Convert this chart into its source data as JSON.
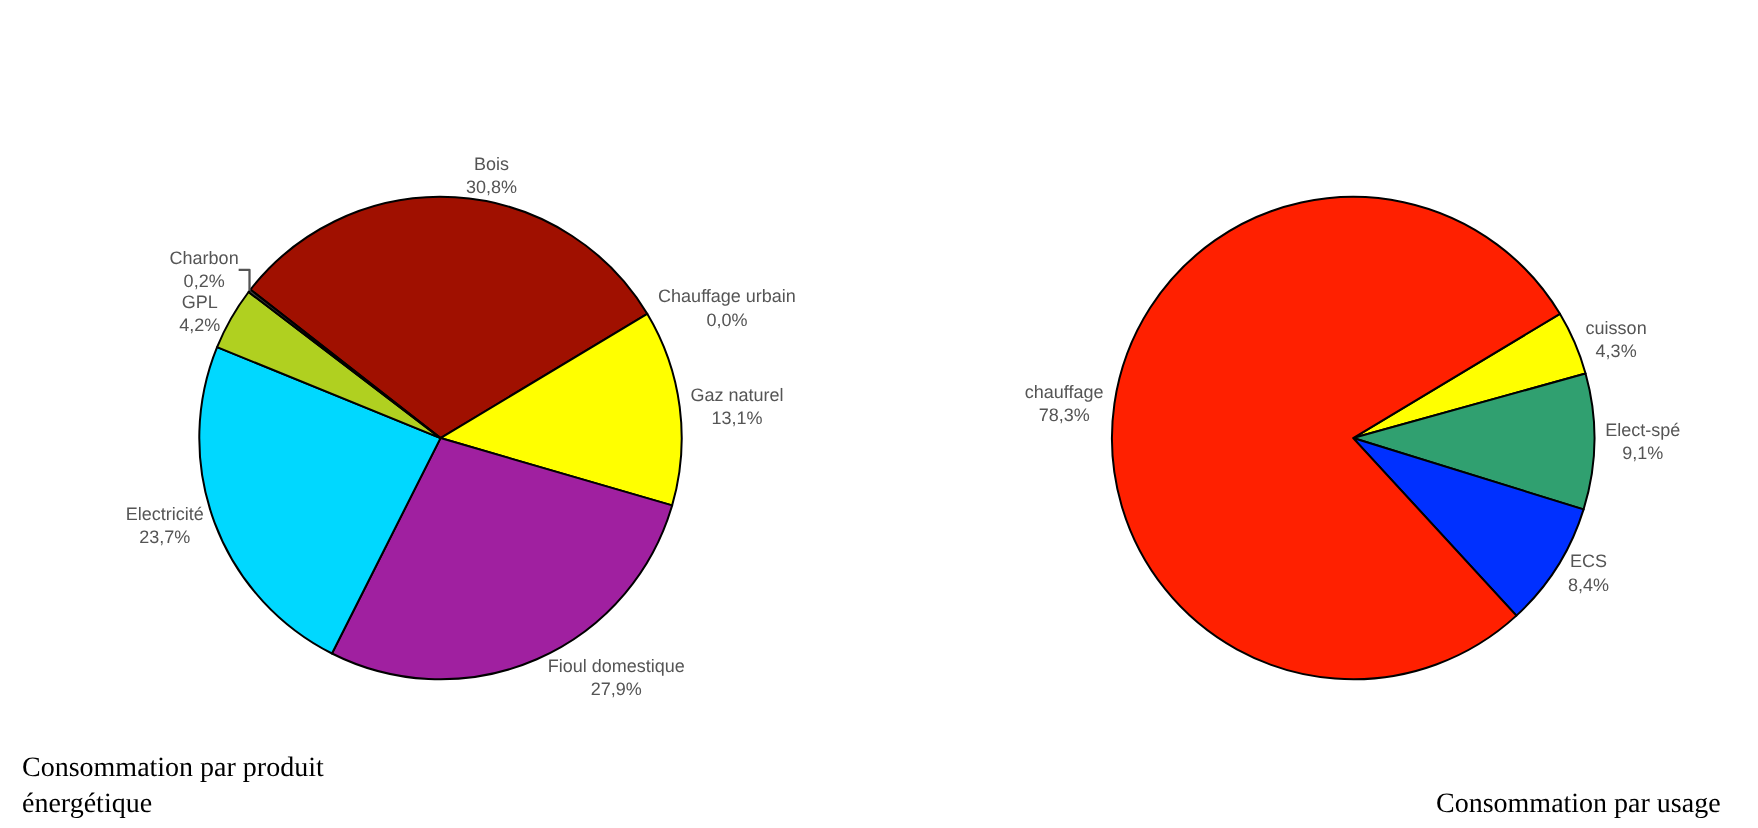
{
  "chart_data": [
    {
      "type": "pie",
      "title": "Consommation par produit énergétique",
      "categories": [
        "Bois",
        "Chauffage urbain",
        "Gaz naturel",
        "Fioul domestique",
        "Electricité",
        "GPL",
        "Charbon"
      ],
      "values": [
        30.8,
        0.0,
        13.1,
        27.9,
        23.7,
        4.2,
        0.2
      ],
      "value_labels": [
        "30,8%",
        "0,0%",
        "13,1%",
        "27,9%",
        "23,7%",
        "4,2%",
        "0,2%"
      ],
      "colors": [
        "#a01000",
        "#ff8c00",
        "#ffff00",
        "#a020a0",
        "#00d8ff",
        "#b0d020",
        "#404040"
      ]
    },
    {
      "type": "pie",
      "title": "Consommation par usage",
      "categories": [
        "cuisson",
        "Elect-spé",
        "ECS",
        "chauffage"
      ],
      "values": [
        4.3,
        9.1,
        8.4,
        78.3
      ],
      "value_labels": [
        "4,3%",
        "9,1%",
        "8,4%",
        "78,3%"
      ],
      "colors": [
        "#ffff00",
        "#30a070",
        "#0030ff",
        "#ff2000"
      ]
    }
  ]
}
